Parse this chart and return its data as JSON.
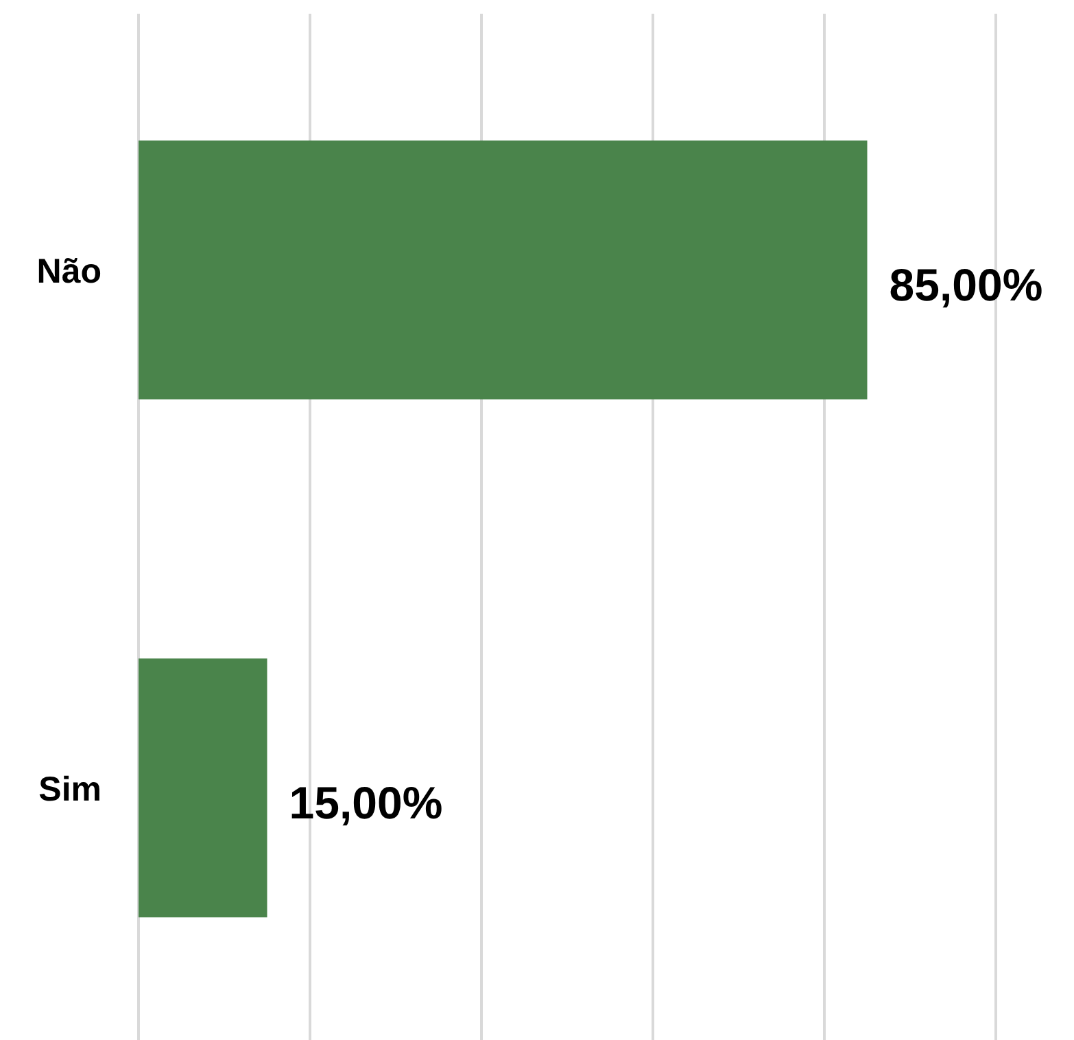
{
  "chart_data": {
    "type": "bar",
    "orientation": "horizontal",
    "categories": [
      "Não",
      "Sim"
    ],
    "values": [
      85,
      15
    ],
    "value_labels": [
      "85,00%",
      "15,00%"
    ],
    "color": "#4a844b",
    "xlim": [
      0,
      100
    ],
    "xticks": [
      {
        "value": 0,
        "label": null
      },
      {
        "value": 20,
        "label": null
      },
      {
        "value": 40,
        "label": null
      },
      {
        "value": 60,
        "label": null
      },
      {
        "value": 80,
        "label": null
      },
      {
        "value": 100,
        "label": null
      }
    ],
    "tick_labels": "y",
    "grid": "x"
  }
}
